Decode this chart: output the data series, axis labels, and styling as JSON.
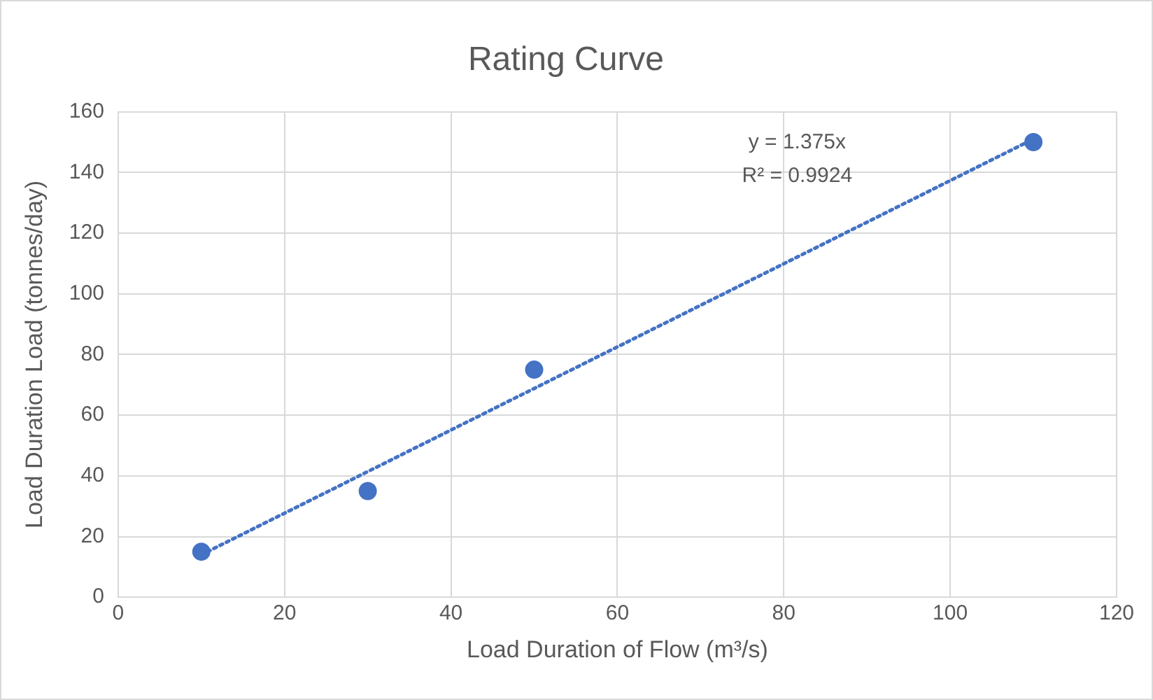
{
  "chart_data": {
    "type": "scatter",
    "title": "Rating Curve",
    "xlabel": "Load Duration of Flow (m³/s)",
    "ylabel": "Load Duration Load (tonnes/day)",
    "annotations": [
      "y = 1.375x",
      "R² = 0.9924"
    ],
    "series": [
      {
        "type": "scatter",
        "color": "#4472c4",
        "x": [
          10,
          30,
          50,
          110
        ],
        "values": [
          15,
          35,
          75,
          150
        ],
        "marker": "circle"
      },
      {
        "type": "line",
        "color": "#4472c4",
        "x": [
          10,
          110
        ],
        "values": [
          14,
          151
        ],
        "line_style": "dotted",
        "marker": "none"
      }
    ],
    "xlim": [
      0,
      120
    ],
    "xticks": [
      0,
      20,
      40,
      60,
      80,
      100,
      120
    ],
    "ylim": [
      0,
      160
    ],
    "yticks": [
      0,
      20,
      40,
      60,
      80,
      100,
      120,
      140,
      160
    ],
    "grid": true,
    "legend": false
  }
}
